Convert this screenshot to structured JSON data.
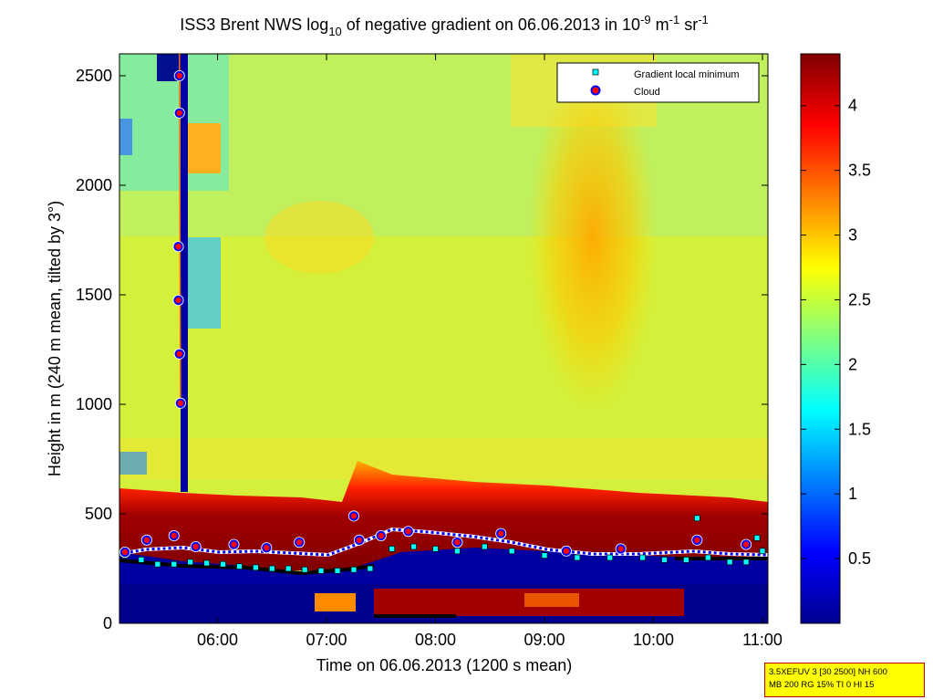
{
  "title": {
    "prefix": "ISS3 Brent NWS log",
    "log_sub": "10",
    "middle": " of negative gradient on 06.06.2013 in 10",
    "exp1": "-9",
    "unit_m": " m",
    "exp2": "-1",
    "unit_sr": " sr",
    "exp3": "-1"
  },
  "chart_data": {
    "type": "heatmap",
    "xlabel": "Time on 06.06.2013 (1200 s mean)",
    "ylabel": "Height in m (240 m mean, tilted by 3°)",
    "x_unit": "hours",
    "xlim": [
      5.1,
      11.05
    ],
    "ylim": [
      0,
      2600
    ],
    "x_ticks": [
      6,
      7,
      8,
      9,
      10,
      11
    ],
    "x_tick_labels": [
      "06:00",
      "07:00",
      "08:00",
      "09:00",
      "10:00",
      "11:00"
    ],
    "y_ticks": [
      0,
      500,
      1000,
      1500,
      2000,
      2500
    ],
    "y_tick_labels": [
      "0",
      "500",
      "1000",
      "1500",
      "2000",
      "2500"
    ],
    "colorbar": {
      "clim": [
        0,
        4.4
      ],
      "ticks": [
        0.5,
        1,
        1.5,
        2,
        2.5,
        3,
        3.5,
        4
      ],
      "tick_labels": [
        "0.5",
        "1",
        "1.5",
        "2",
        "2.5",
        "3",
        "3.5",
        "4"
      ],
      "colormap": "jet"
    },
    "legend": {
      "location": "top-right",
      "entries": [
        "Gradient local minimum",
        "Cloud"
      ]
    },
    "series": [
      {
        "name": "Gradient local minimum",
        "marker": "square",
        "color": "#00ffff",
        "x": [
          5.15,
          5.3,
          5.45,
          5.6,
          5.75,
          5.9,
          6.05,
          6.2,
          6.35,
          6.5,
          6.65,
          6.8,
          6.95,
          7.1,
          7.25,
          7.4,
          7.6,
          7.8,
          8.0,
          8.2,
          8.45,
          8.7,
          9.0,
          9.3,
          9.6,
          9.9,
          10.1,
          10.3,
          10.4,
          10.5,
          10.7,
          10.85,
          10.95,
          11.0
        ],
        "y": [
          310,
          290,
          270,
          270,
          280,
          275,
          270,
          260,
          255,
          250,
          250,
          245,
          240,
          240,
          245,
          250,
          340,
          350,
          340,
          330,
          350,
          330,
          310,
          300,
          300,
          300,
          290,
          290,
          480,
          300,
          280,
          280,
          390,
          330
        ]
      },
      {
        "name": "Cloud",
        "marker": "circle",
        "color": "#ff0000",
        "edge": "#0000ff",
        "x": [
          5.65,
          5.65,
          5.64,
          5.64,
          5.65,
          5.66,
          5.15,
          5.35,
          5.6,
          5.8,
          6.15,
          6.45,
          6.75,
          7.25,
          7.3,
          7.5,
          7.75,
          8.2,
          8.6,
          9.2,
          9.7,
          10.4,
          10.85
        ],
        "y": [
          2500,
          2330,
          1720,
          1475,
          1230,
          1005,
          325,
          380,
          400,
          350,
          360,
          345,
          370,
          490,
          380,
          400,
          420,
          370,
          410,
          330,
          340,
          380,
          360
        ]
      }
    ],
    "heatmap_description_values": {
      "background_level": 2.3,
      "low_layer_top_m": 600,
      "low_layer_value": 4.4,
      "boundary_layer_value": 0.2,
      "plume_center_hour": 9.45,
      "plume_value": 3.0,
      "streak_hour": 5.65
    }
  },
  "infobox": {
    "line1": "3.5XEFUV 3 [30 2500] NH 600",
    "line2": "MB 200 RG 15% TI 0 HI 15"
  }
}
